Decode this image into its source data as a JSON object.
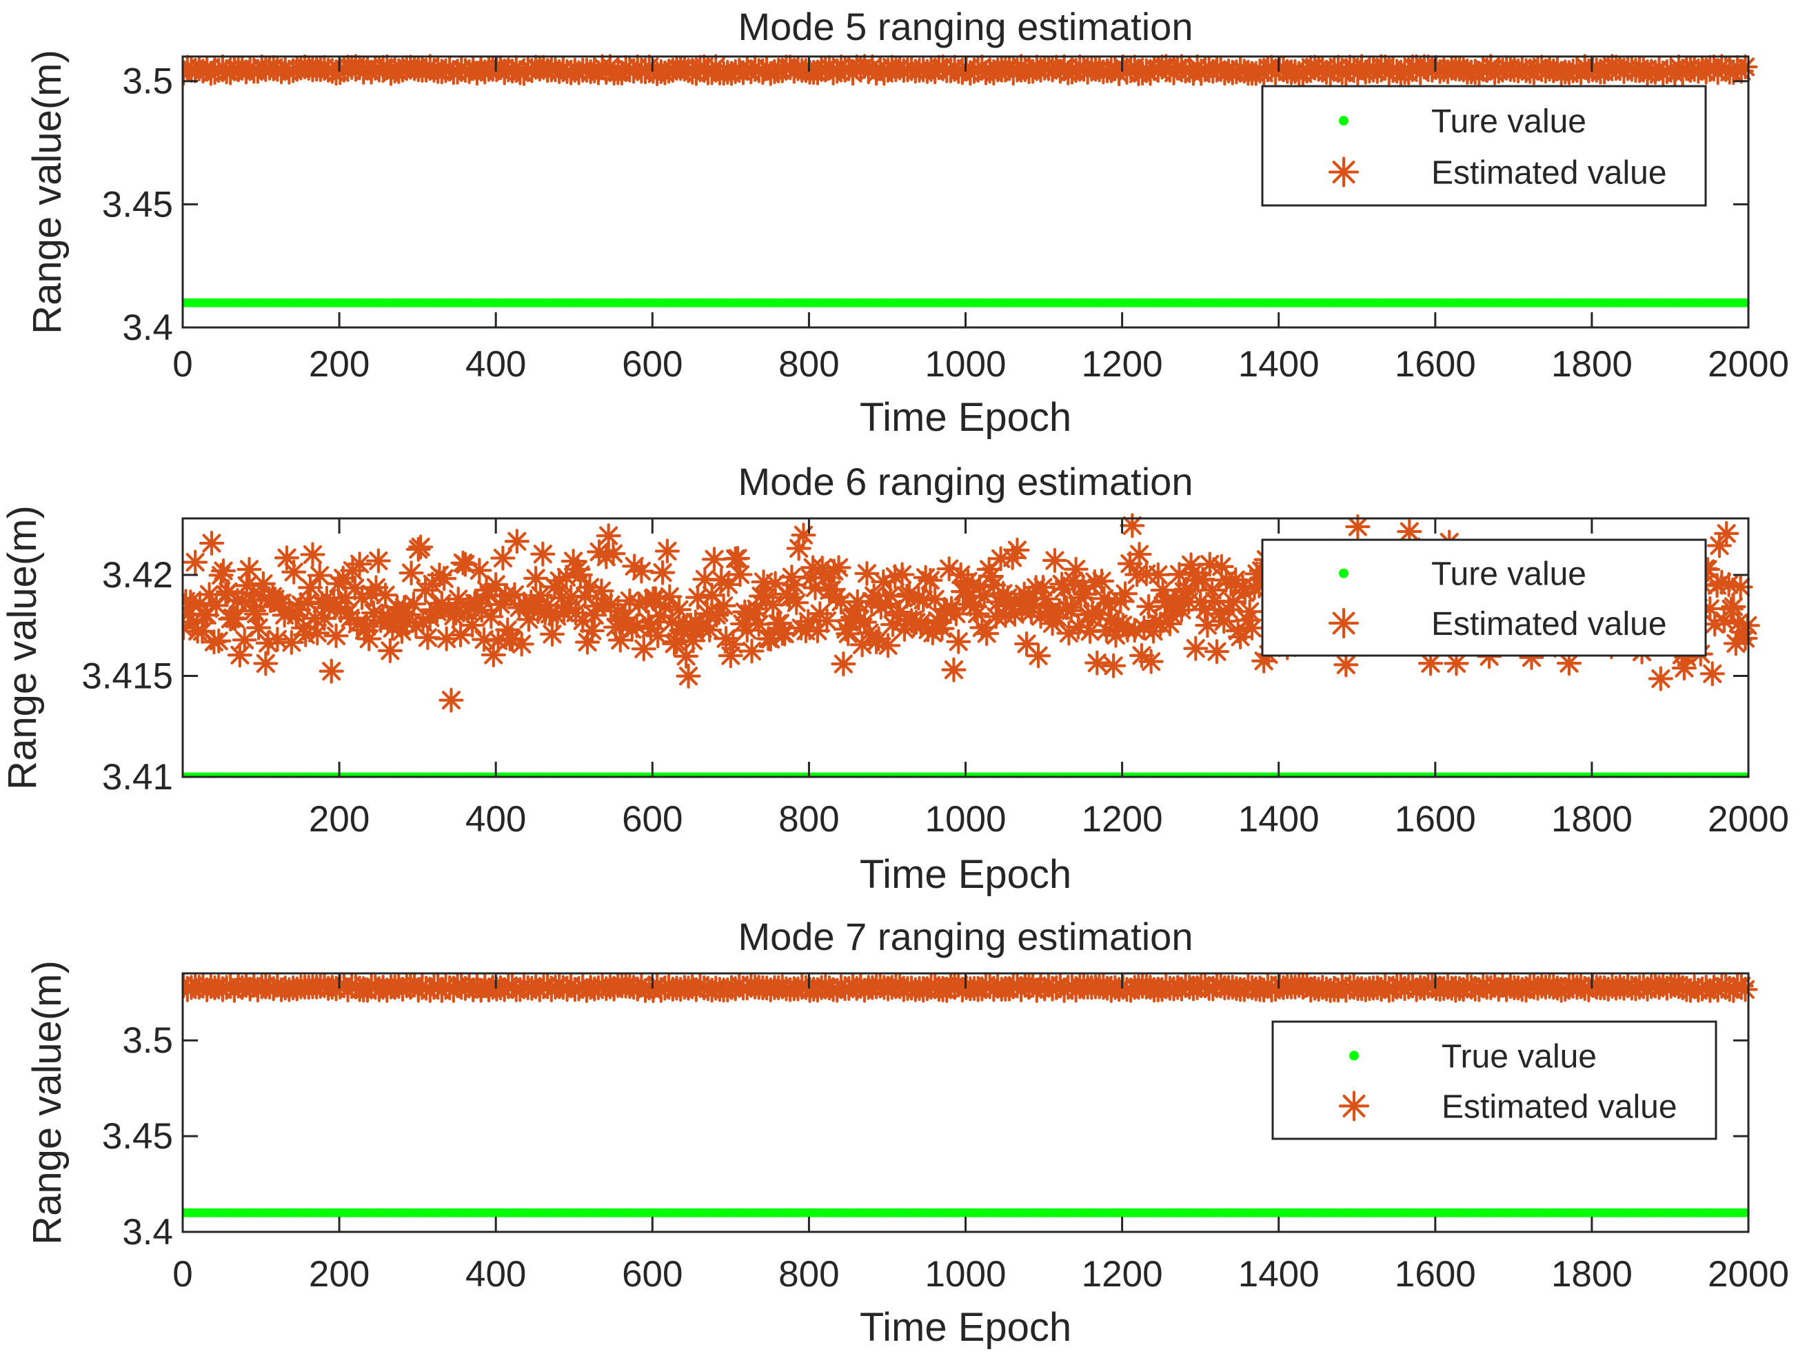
{
  "chart_data": [
    {
      "type": "scatter",
      "title": "Mode 5 ranging estimation",
      "xlabel": "Time Epoch",
      "ylabel": "Range value(m)",
      "xlim": [
        0,
        2000
      ],
      "ylim": [
        3.4,
        3.51
      ],
      "xticks": [
        "0",
        "200",
        "400",
        "600",
        "800",
        "1000",
        "1200",
        "1400",
        "1600",
        "1800",
        "2000"
      ],
      "yticks": [
        "3.4",
        "3.45",
        "3.5"
      ],
      "legend_position": "top-right",
      "grid": false,
      "series": [
        {
          "name": "Ture value",
          "marker": "dot",
          "color": "#00ff00",
          "constant": 3.41,
          "n_points": 2000
        },
        {
          "name": "Estimated value",
          "marker": "asterisk",
          "color": "#d95319",
          "mean": 3.5045,
          "spread": 0.003,
          "n_points": 2000
        }
      ]
    },
    {
      "type": "scatter",
      "title": "Mode 6 ranging estimation",
      "xlabel": "Time Epoch",
      "ylabel": "Range value(m)",
      "xlim": [
        0,
        2000
      ],
      "ylim": [
        3.41,
        3.4228
      ],
      "xticks": [
        "200",
        "400",
        "600",
        "800",
        "1000",
        "1200",
        "1400",
        "1600",
        "1800",
        "2000"
      ],
      "yticks": [
        "3.41",
        "3.415",
        "3.42"
      ],
      "legend_position": "top-right",
      "grid": false,
      "series": [
        {
          "name": "Ture value",
          "marker": "dot",
          "color": "#00ff00",
          "constant": 3.41,
          "n_points": 2000
        },
        {
          "name": "Estimated value",
          "marker": "asterisk",
          "color": "#d95319",
          "mean": 3.4185,
          "spread": 0.0045,
          "n_points": 2000
        }
      ]
    },
    {
      "type": "scatter",
      "title": "Mode 7 ranging estimation",
      "xlabel": "Time Epoch",
      "ylabel": "Range value(m)",
      "xlim": [
        0,
        2000
      ],
      "ylim": [
        3.4,
        3.535
      ],
      "xticks": [
        "0",
        "200",
        "400",
        "600",
        "800",
        "1000",
        "1200",
        "1400",
        "1600",
        "1800",
        "2000"
      ],
      "yticks": [
        "3.4",
        "3.45",
        "3.5"
      ],
      "legend_position": "top-right",
      "grid": false,
      "series": [
        {
          "name": "True value",
          "marker": "dot",
          "color": "#00ff00",
          "constant": 3.41,
          "n_points": 2000
        },
        {
          "name": "Estimated value",
          "marker": "asterisk",
          "color": "#d95319",
          "mean": 3.5275,
          "spread": 0.003,
          "n_points": 2000
        }
      ]
    }
  ]
}
